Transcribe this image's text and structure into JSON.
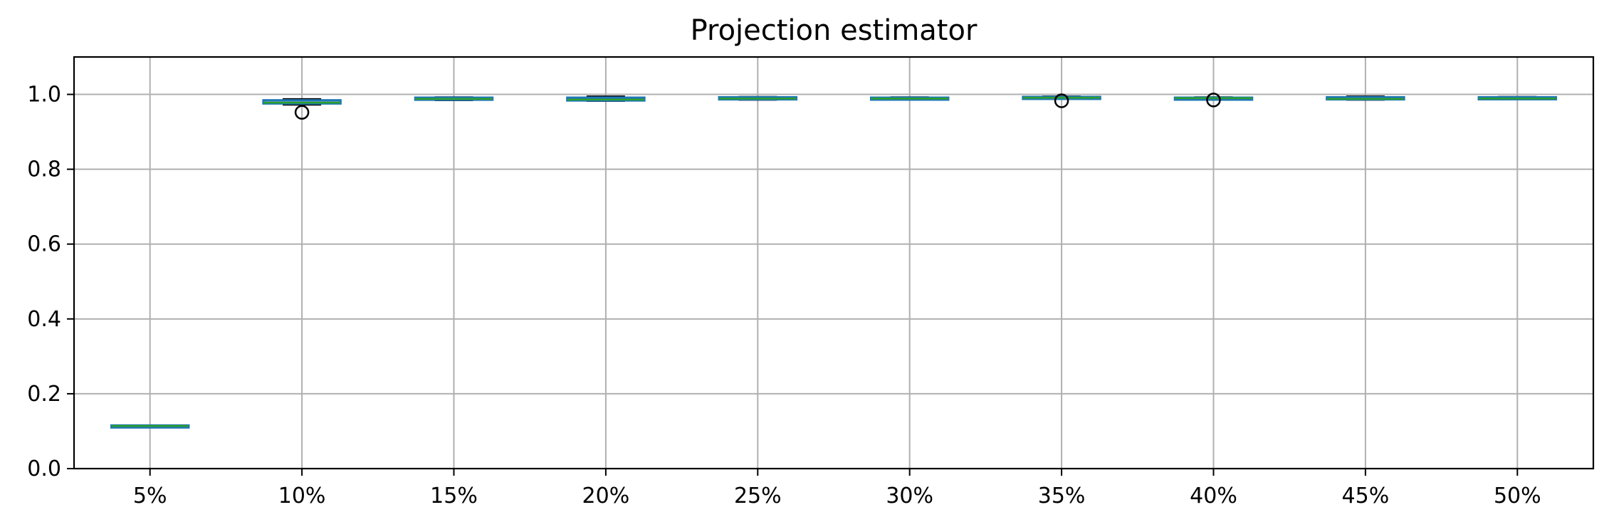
{
  "chart_data": {
    "type": "box",
    "title": "Projection estimator",
    "xlabel": "",
    "ylabel": "",
    "ylim": [
      0.0,
      1.1
    ],
    "yticks": [
      0.0,
      0.2,
      0.4,
      0.6,
      0.8,
      1.0
    ],
    "ytick_labels": [
      "0.0",
      "0.2",
      "0.4",
      "0.6",
      "0.8",
      "1.0"
    ],
    "grid": true,
    "categories": [
      "5%",
      "10%",
      "15%",
      "20%",
      "25%",
      "30%",
      "35%",
      "40%",
      "45%",
      "50%"
    ],
    "boxes": [
      {
        "label": "5%",
        "whislo": 0.112,
        "q1": 0.113,
        "median": 0.114,
        "q3": 0.115,
        "whishi": 0.116,
        "fliers": []
      },
      {
        "label": "10%",
        "whislo": 0.972,
        "q1": 0.976,
        "median": 0.978,
        "q3": 0.984,
        "whishi": 0.988,
        "fliers": [
          0.952
        ]
      },
      {
        "label": "15%",
        "whislo": 0.984,
        "q1": 0.986,
        "median": 0.988,
        "q3": 0.991,
        "whishi": 0.993,
        "fliers": []
      },
      {
        "label": "20%",
        "whislo": 0.982,
        "q1": 0.984,
        "median": 0.986,
        "q3": 0.991,
        "whishi": 0.995,
        "fliers": []
      },
      {
        "label": "25%",
        "whislo": 0.985,
        "q1": 0.987,
        "median": 0.989,
        "q3": 0.992,
        "whishi": 0.994,
        "fliers": []
      },
      {
        "label": "30%",
        "whislo": 0.986,
        "q1": 0.988,
        "median": 0.989,
        "q3": 0.991,
        "whishi": 0.993,
        "fliers": []
      },
      {
        "label": "35%",
        "whislo": 0.988,
        "q1": 0.989,
        "median": 0.991,
        "q3": 0.993,
        "whishi": 0.995,
        "fliers": [
          0.983
        ]
      },
      {
        "label": "40%",
        "whislo": 0.987,
        "q1": 0.988,
        "median": 0.99,
        "q3": 0.991,
        "whishi": 0.993,
        "fliers": [
          0.985
        ]
      },
      {
        "label": "45%",
        "whislo": 0.985,
        "q1": 0.987,
        "median": 0.988,
        "q3": 0.992,
        "whishi": 0.995,
        "fliers": []
      },
      {
        "label": "50%",
        "whislo": 0.986,
        "q1": 0.988,
        "median": 0.989,
        "q3": 0.992,
        "whishi": 0.994,
        "fliers": []
      }
    ],
    "colors": {
      "box": "#1f77b4",
      "whisker": "#000000",
      "median": "#2ca02c",
      "flier_edge": "#000000",
      "grid": "#b0b0b0"
    }
  }
}
